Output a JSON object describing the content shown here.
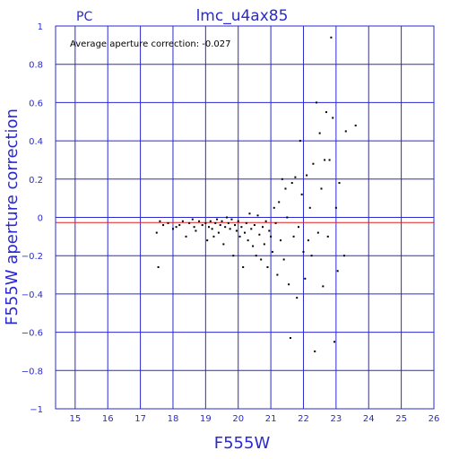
{
  "chart_data": {
    "type": "scatter",
    "title": "lmc_u4ax85",
    "corner_label": "PC",
    "annotation": "Average aperture correction: -0.027",
    "xlabel": "F555W",
    "ylabel": "F555W aperture correction",
    "xlim": [
      14.4,
      26.0
    ],
    "ylim": [
      -1,
      1
    ],
    "x_ticks": [
      15,
      16,
      17,
      18,
      19,
      20,
      21,
      22,
      23,
      24,
      25,
      26
    ],
    "y_ticks": [
      -1,
      -0.8,
      -0.6,
      -0.4,
      -0.2,
      0,
      0.2,
      0.4,
      0.6,
      0.8,
      1
    ],
    "y_tick_labels": [
      "−1",
      "−0.8",
      "−0.6",
      "−0.4",
      "−0.2",
      "0",
      "0.2",
      "0.4",
      "0.6",
      "0.8",
      "1"
    ],
    "grid": true,
    "reference_lines": [
      {
        "y": 0,
        "color": "#2a2ad0"
      },
      {
        "y": -0.027,
        "color": "#e02020"
      }
    ],
    "points": [
      [
        17.5,
        -0.08
      ],
      [
        17.6,
        -0.02
      ],
      [
        17.55,
        -0.26
      ],
      [
        17.7,
        -0.04
      ],
      [
        17.85,
        -0.03
      ],
      [
        18.0,
        -0.06
      ],
      [
        18.1,
        -0.05
      ],
      [
        18.2,
        -0.04
      ],
      [
        18.3,
        -0.02
      ],
      [
        18.4,
        -0.1
      ],
      [
        18.5,
        -0.03
      ],
      [
        18.6,
        -0.01
      ],
      [
        18.65,
        -0.05
      ],
      [
        18.7,
        -0.07
      ],
      [
        18.8,
        -0.02
      ],
      [
        18.9,
        -0.04
      ],
      [
        19.0,
        -0.03
      ],
      [
        19.05,
        -0.12
      ],
      [
        19.1,
        -0.05
      ],
      [
        19.15,
        -0.02
      ],
      [
        19.2,
        -0.06
      ],
      [
        19.25,
        -0.1
      ],
      [
        19.3,
        -0.03
      ],
      [
        19.35,
        -0.01
      ],
      [
        19.4,
        -0.08
      ],
      [
        19.45,
        -0.04
      ],
      [
        19.5,
        -0.02
      ],
      [
        19.55,
        -0.14
      ],
      [
        19.6,
        -0.05
      ],
      [
        19.65,
        0.0
      ],
      [
        19.7,
        -0.03
      ],
      [
        19.75,
        -0.06
      ],
      [
        19.8,
        -0.01
      ],
      [
        19.85,
        -0.2
      ],
      [
        19.9,
        -0.04
      ],
      [
        19.95,
        -0.07
      ],
      [
        20.0,
        -0.02
      ],
      [
        20.05,
        -0.1
      ],
      [
        20.1,
        -0.05
      ],
      [
        20.15,
        -0.26
      ],
      [
        20.2,
        -0.08
      ],
      [
        20.25,
        -0.03
      ],
      [
        20.3,
        -0.12
      ],
      [
        20.35,
        0.02
      ],
      [
        20.4,
        -0.06
      ],
      [
        20.45,
        -0.15
      ],
      [
        20.5,
        -0.04
      ],
      [
        20.55,
        -0.2
      ],
      [
        20.6,
        0.01
      ],
      [
        20.65,
        -0.09
      ],
      [
        20.7,
        -0.22
      ],
      [
        20.75,
        -0.05
      ],
      [
        20.8,
        -0.14
      ],
      [
        20.85,
        -0.02
      ],
      [
        20.9,
        -0.26
      ],
      [
        20.95,
        -0.07
      ],
      [
        21.0,
        -0.1
      ],
      [
        21.05,
        -0.18
      ],
      [
        21.1,
        0.05
      ],
      [
        21.15,
        -0.03
      ],
      [
        21.2,
        -0.3
      ],
      [
        21.25,
        0.08
      ],
      [
        21.3,
        -0.12
      ],
      [
        21.35,
        0.2
      ],
      [
        21.4,
        -0.22
      ],
      [
        21.45,
        0.15
      ],
      [
        21.5,
        0.0
      ],
      [
        21.55,
        -0.35
      ],
      [
        21.6,
        -0.63
      ],
      [
        21.65,
        0.18
      ],
      [
        21.7,
        -0.1
      ],
      [
        21.75,
        0.21
      ],
      [
        21.8,
        -0.42
      ],
      [
        21.85,
        -0.05
      ],
      [
        21.9,
        0.4
      ],
      [
        21.95,
        0.12
      ],
      [
        22.0,
        -0.18
      ],
      [
        22.05,
        -0.32
      ],
      [
        22.1,
        0.22
      ],
      [
        22.15,
        -0.12
      ],
      [
        22.2,
        0.05
      ],
      [
        22.25,
        -0.2
      ],
      [
        22.3,
        0.28
      ],
      [
        22.35,
        -0.7
      ],
      [
        22.4,
        0.6
      ],
      [
        22.45,
        -0.08
      ],
      [
        22.5,
        0.44
      ],
      [
        22.55,
        0.15
      ],
      [
        22.6,
        -0.36
      ],
      [
        22.65,
        0.3
      ],
      [
        22.7,
        0.55
      ],
      [
        22.75,
        -0.1
      ],
      [
        22.8,
        0.3
      ],
      [
        22.85,
        0.94
      ],
      [
        22.9,
        0.52
      ],
      [
        22.95,
        -0.65
      ],
      [
        23.0,
        0.05
      ],
      [
        23.05,
        -0.28
      ],
      [
        23.1,
        0.18
      ],
      [
        23.3,
        0.45
      ],
      [
        23.6,
        0.48
      ],
      [
        23.25,
        -0.2
      ]
    ]
  }
}
